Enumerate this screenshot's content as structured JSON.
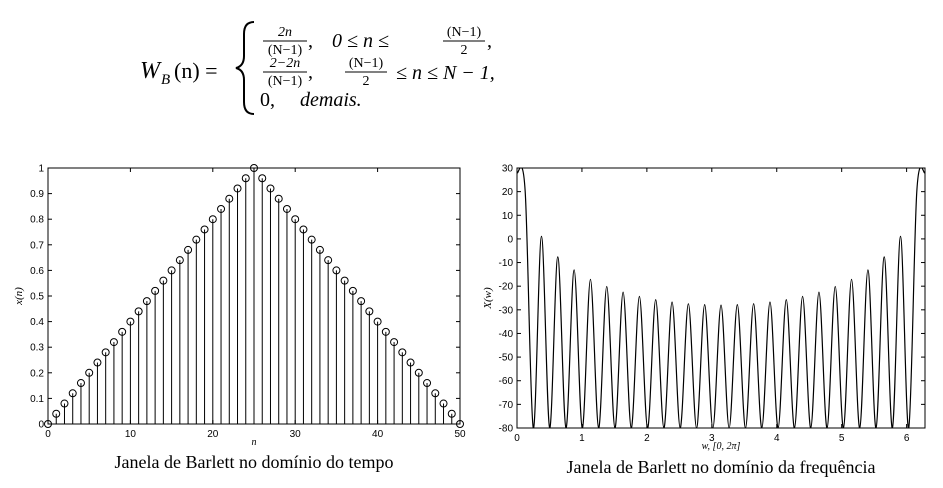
{
  "formula": {
    "lhs": {
      "symbol": "W",
      "subscript": "B",
      "arg": "(n) ="
    },
    "cases": [
      {
        "expr": {
          "num": "2n",
          "den": "(N−1)"
        },
        "comma": ",",
        "cond": {
          "left": "0 ≤ n ≤",
          "num": "(N−1)",
          "den": "2",
          "right": ","
        }
      },
      {
        "expr": {
          "num": "2−2n",
          "den": "(N−1)"
        },
        "comma": ",",
        "cond": {
          "num": "(N−1)",
          "den": "2",
          "right": "≤ n ≤ N − 1,"
        }
      },
      {
        "expr": "0,",
        "cond": "demais."
      }
    ]
  },
  "chart_data": [
    {
      "type": "stem",
      "caption": "Janela de Barlett no domínio do tempo",
      "xlabel": "n",
      "ylabel": "x(n)",
      "color": "#000000",
      "x": [
        0,
        1,
        2,
        3,
        4,
        5,
        6,
        7,
        8,
        9,
        10,
        11,
        12,
        13,
        14,
        15,
        16,
        17,
        18,
        19,
        20,
        21,
        22,
        23,
        24,
        25,
        26,
        27,
        28,
        29,
        30,
        31,
        32,
        33,
        34,
        35,
        36,
        37,
        38,
        39,
        40,
        41,
        42,
        43,
        44,
        45,
        46,
        47,
        48,
        49,
        50
      ],
      "values": [
        0,
        0.04,
        0.08,
        0.12,
        0.16,
        0.2,
        0.24,
        0.28,
        0.32,
        0.36,
        0.4,
        0.44,
        0.48,
        0.52,
        0.56,
        0.6,
        0.64,
        0.68,
        0.72,
        0.76,
        0.8,
        0.84,
        0.88,
        0.92,
        0.96,
        1,
        0.96,
        0.92,
        0.88,
        0.84,
        0.8,
        0.76,
        0.72,
        0.68,
        0.64,
        0.6,
        0.56,
        0.52,
        0.48,
        0.44,
        0.4,
        0.36,
        0.32,
        0.28,
        0.24,
        0.2,
        0.16,
        0.12,
        0.08,
        0.04,
        0
      ],
      "xlim": [
        0,
        50
      ],
      "xticks": [
        0,
        10,
        20,
        30,
        40,
        50
      ],
      "ylim": [
        0,
        1
      ],
      "yticks": [
        0,
        0.1,
        0.2,
        0.3,
        0.4,
        0.5,
        0.6,
        0.7,
        0.8,
        0.9,
        1
      ]
    },
    {
      "type": "line",
      "caption": "Janela de Barlett no domínio da frequência",
      "xlabel": "w, [0, 2π]",
      "ylabel": "X(w)",
      "color": "#000000",
      "x": [
        0,
        0.126,
        0.251,
        0.377,
        0.503,
        0.628,
        0.754,
        0.88,
        1.005,
        1.131,
        1.257,
        1.382,
        1.508,
        1.634,
        1.759,
        1.885,
        2.011,
        2.136,
        2.262,
        2.388,
        2.513,
        2.639,
        2.765,
        2.89,
        3.016,
        3.142,
        3.267,
        3.393,
        3.519,
        3.644,
        3.77,
        3.896,
        4.021,
        4.147,
        4.273,
        4.398,
        4.524,
        4.65,
        4.775,
        4.901,
        5.027,
        5.152,
        5.278,
        5.404,
        5.529,
        5.655,
        5.781,
        5.906,
        6.032,
        6.157,
        6.283
      ],
      "values": [
        28,
        20.1,
        -80,
        1.1,
        -80,
        -7.6,
        -80,
        -13.1,
        -80,
        -17.1,
        -80,
        -20.1,
        -80,
        -22.5,
        -80,
        -24.3,
        -80,
        -25.7,
        -80,
        -26.7,
        -80,
        -27.4,
        -80,
        -27.8,
        -80,
        -28,
        -80,
        -27.8,
        -80,
        -27.4,
        -80,
        -26.7,
        -80,
        -25.7,
        -80,
        -24.3,
        -80,
        -22.5,
        -80,
        -20.1,
        -80,
        -17.1,
        -80,
        -13.1,
        -80,
        -7.6,
        -80,
        1.1,
        -80,
        20.1,
        28
      ],
      "xlim": [
        0,
        6.2832
      ],
      "xticks": [
        0,
        1,
        2,
        3,
        4,
        5,
        6
      ],
      "ylim": [
        -80,
        30
      ],
      "yticks": [
        -80,
        -70,
        -60,
        -50,
        -40,
        -30,
        -20,
        -10,
        0,
        10,
        20,
        30
      ]
    }
  ]
}
